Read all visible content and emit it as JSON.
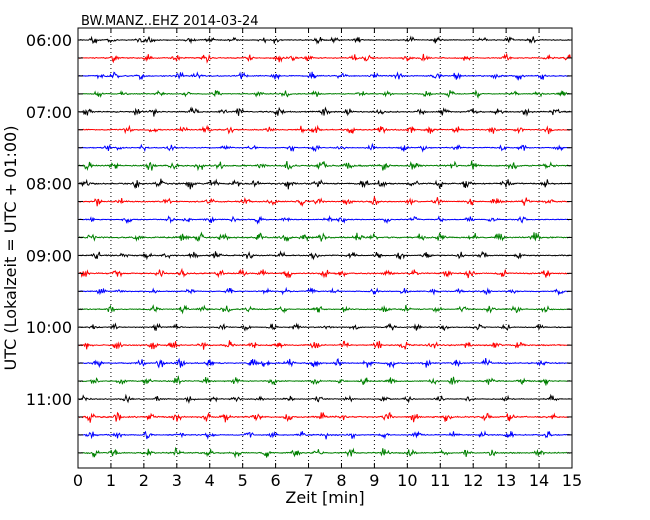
{
  "chart_data": {
    "type": "line",
    "title": "BW.MANZ..EHZ 2014-03-24",
    "xlabel": "Zeit  [min]",
    "ylabel": "UTC (Lokalzeit = UTC + 01:00)",
    "xlim": [
      0,
      15
    ],
    "x_ticks": [
      "0",
      "1",
      "2",
      "3",
      "4",
      "5",
      "6",
      "7",
      "8",
      "9",
      "10",
      "11",
      "12",
      "13",
      "14",
      "15"
    ],
    "y_ticks": [
      "06:00",
      "07:00",
      "08:00",
      "09:00",
      "10:00",
      "11:00"
    ],
    "grid": "vertical-dotted",
    "colors": [
      "#000000",
      "#ff0000",
      "#0000ff",
      "#008000"
    ],
    "series": [
      {
        "start": "06:00",
        "color_index": 0,
        "amplitude": 0.3,
        "bursts": [
          0.5,
          1.0,
          1.9,
          2.2,
          3.4,
          4.0,
          4.7,
          5.6,
          6.0,
          7.3,
          7.8,
          8.5,
          10.1,
          10.9,
          12.3,
          13.1,
          13.8
        ]
      },
      {
        "start": "06:15",
        "color_index": 1,
        "amplitude": 0.35,
        "bursts": [
          1.1,
          2.1,
          3.0,
          3.9,
          5.2,
          6.1,
          6.5,
          7.0,
          8.4,
          8.8,
          10.0,
          10.5,
          11.8,
          13.0,
          14.3,
          14.9
        ]
      },
      {
        "start": "06:30",
        "color_index": 2,
        "amplitude": 0.35,
        "bursts": [
          0.7,
          1.1,
          1.9,
          3.1,
          3.6,
          5.0,
          6.0,
          7.1,
          8.0,
          9.0,
          9.7,
          10.9,
          11.5,
          12.7,
          13.4,
          14.1
        ]
      },
      {
        "start": "06:45",
        "color_index": 3,
        "amplitude": 0.3,
        "bursts": [
          0.6,
          1.4,
          2.5,
          3.3,
          4.2,
          5.5,
          6.3,
          7.2,
          8.6,
          9.4,
          10.6,
          11.3,
          12.1,
          13.2,
          14.0,
          14.7
        ]
      },
      {
        "start": "07:00",
        "color_index": 0,
        "amplitude": 0.4,
        "bursts": [
          0.3,
          1.8,
          2.3,
          3.5,
          4.4,
          4.9,
          6.1,
          7.5,
          8.2,
          9.2,
          10.4,
          11.1,
          12.0,
          12.8,
          13.6,
          14.5
        ]
      },
      {
        "start": "07:15",
        "color_index": 1,
        "amplitude": 0.35,
        "bursts": [
          1.5,
          2.3,
          3.2,
          3.9,
          4.6,
          5.8,
          6.8,
          7.2,
          8.3,
          9.2,
          10.1,
          10.7,
          11.5,
          12.6,
          13.4,
          14.3
        ]
      },
      {
        "start": "07:30",
        "color_index": 2,
        "amplitude": 0.3,
        "bursts": [
          0.9,
          1.3,
          2.0,
          2.8,
          4.5,
          5.3,
          6.5,
          7.2,
          8.0,
          8.9,
          9.9,
          10.5,
          11.5,
          12.9,
          13.5,
          14.6
        ]
      },
      {
        "start": "07:45",
        "color_index": 3,
        "amplitude": 0.45,
        "bursts": [
          0.3,
          1.1,
          2.2,
          2.9,
          3.7,
          4.3,
          5.6,
          6.4,
          7.4,
          8.2,
          9.3,
          10.2,
          11.4,
          12.0,
          13.2,
          14.3
        ]
      },
      {
        "start": "08:00",
        "color_index": 0,
        "amplitude": 0.45,
        "bursts": [
          0.2,
          1.8,
          2.5,
          3.4,
          4.1,
          4.8,
          5.4,
          6.4,
          7.3,
          8.7,
          9.2,
          10.2,
          11.0,
          11.8,
          13.0,
          14.2
        ]
      },
      {
        "start": "08:15",
        "color_index": 1,
        "amplitude": 0.4,
        "bursts": [
          0.6,
          1.3,
          2.7,
          4.0,
          5.1,
          5.9,
          6.8,
          7.3,
          8.2,
          9.0,
          10.1,
          10.9,
          11.9,
          12.7,
          13.6,
          14.3
        ]
      },
      {
        "start": "08:30",
        "color_index": 2,
        "amplitude": 0.3,
        "bursts": [
          0.4,
          1.5,
          2.8,
          3.3,
          4.0,
          4.7,
          5.5,
          6.3,
          7.6,
          8.0,
          9.4,
          10.2,
          11.0,
          11.9,
          12.6,
          13.5
        ]
      },
      {
        "start": "08:45",
        "color_index": 3,
        "amplitude": 0.45,
        "bursts": [
          0.4,
          1.8,
          3.2,
          3.7,
          4.4,
          5.5,
          6.3,
          6.9,
          7.4,
          8.5,
          9.0,
          10.4,
          11.0,
          12.0,
          12.8,
          13.9
        ]
      },
      {
        "start": "09:00",
        "color_index": 0,
        "amplitude": 0.35,
        "bursts": [
          0.6,
          1.4,
          2.1,
          2.7,
          3.5,
          4.2,
          5.2,
          6.2,
          7.2,
          8.3,
          9.1,
          9.8,
          10.6,
          11.6,
          12.3,
          13.4
        ]
      },
      {
        "start": "09:15",
        "color_index": 1,
        "amplitude": 0.4,
        "bursts": [
          0.2,
          1.2,
          2.5,
          3.2,
          4.3,
          5.0,
          5.6,
          6.4,
          7.5,
          8.0,
          9.4,
          10.2,
          11.2,
          11.9,
          12.9,
          14.2
        ]
      },
      {
        "start": "09:30",
        "color_index": 2,
        "amplitude": 0.3,
        "bursts": [
          0.7,
          1.3,
          2.3,
          3.4,
          4.6,
          5.7,
          6.3,
          7.1,
          7.8,
          9.0,
          9.9,
          10.8,
          11.6,
          12.4,
          13.2,
          14.6
        ]
      },
      {
        "start": "09:45",
        "color_index": 3,
        "amplitude": 0.35,
        "bursts": [
          1.0,
          2.3,
          3.2,
          3.8,
          4.5,
          5.2,
          6.2,
          7.3,
          8.1,
          9.3,
          10.0,
          10.9,
          11.7,
          12.5,
          13.3,
          14.2
        ]
      },
      {
        "start": "10:00",
        "color_index": 0,
        "amplitude": 0.3,
        "bursts": [
          0.5,
          1.1,
          2.4,
          3.0,
          4.4,
          5.1,
          5.9,
          6.6,
          7.6,
          8.4,
          9.5,
          10.3,
          11.1,
          12.2,
          13.0,
          14.0
        ]
      },
      {
        "start": "10:15",
        "color_index": 1,
        "amplitude": 0.4,
        "bursts": [
          0.3,
          1.2,
          2.3,
          2.9,
          3.8,
          4.6,
          5.3,
          6.1,
          7.2,
          8.1,
          9.1,
          9.9,
          10.8,
          11.8,
          12.7,
          13.4
        ]
      },
      {
        "start": "10:30",
        "color_index": 2,
        "amplitude": 0.4,
        "bursts": [
          0.6,
          1.9,
          2.5,
          3.1,
          4.0,
          5.3,
          5.7,
          6.4,
          7.2,
          7.9,
          8.8,
          9.5,
          10.6,
          11.5,
          12.4,
          14.1
        ]
      },
      {
        "start": "10:45",
        "color_index": 3,
        "amplitude": 0.35,
        "bursts": [
          0.5,
          1.3,
          2.1,
          3.0,
          3.9,
          4.8,
          5.9,
          7.2,
          8.0,
          8.7,
          9.5,
          10.8,
          11.4,
          12.5,
          13.5,
          14.2
        ]
      },
      {
        "start": "11:00",
        "color_index": 0,
        "amplitude": 0.3,
        "bursts": [
          0.2,
          1.5,
          2.4,
          3.4,
          4.1,
          4.8,
          5.5,
          6.4,
          7.3,
          8.2,
          9.3,
          10.0,
          11.0,
          11.9,
          13.0,
          14.4
        ]
      },
      {
        "start": "11:15",
        "color_index": 1,
        "amplitude": 0.45,
        "bursts": [
          0.4,
          1.2,
          2.2,
          3.0,
          3.9,
          4.5,
          5.4,
          6.4,
          7.4,
          8.0,
          9.4,
          10.2,
          11.2,
          12.4,
          13.1,
          14.4
        ]
      },
      {
        "start": "11:30",
        "color_index": 2,
        "amplitude": 0.35,
        "bursts": [
          0.4,
          1.2,
          2.1,
          3.1,
          4.0,
          5.2,
          5.9,
          6.8,
          7.5,
          8.3,
          9.3,
          10.3,
          11.4,
          12.3,
          13.1,
          14.3
        ]
      },
      {
        "start": "11:45",
        "color_index": 3,
        "amplitude": 0.4,
        "bursts": [
          0.5,
          1.1,
          2.1,
          3.0,
          4.0,
          4.8,
          5.7,
          6.6,
          7.3,
          8.3,
          9.3,
          10.1,
          11.1,
          11.8,
          12.6,
          14.0
        ]
      }
    ]
  }
}
